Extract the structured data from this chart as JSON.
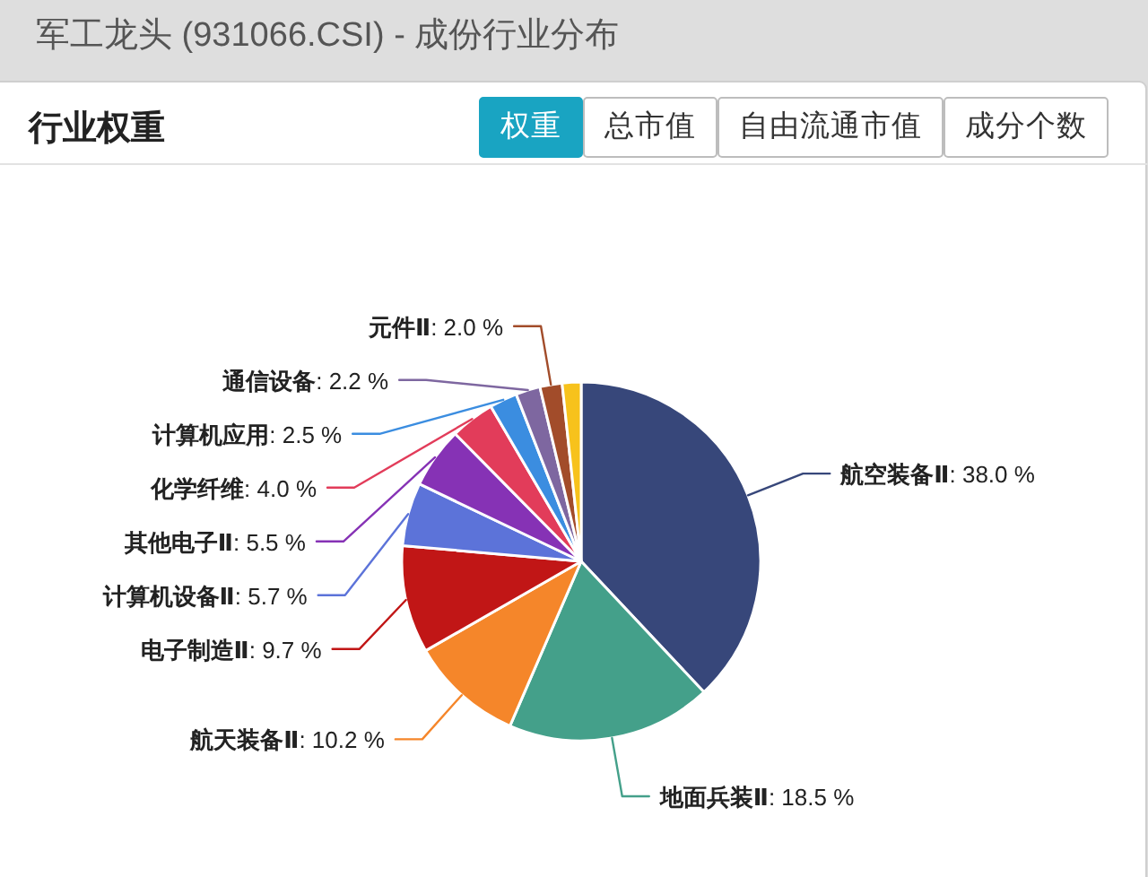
{
  "chart_data": {
    "type": "pie",
    "title": "军工龙头 (931066.CSI) - 成份行业分布",
    "subtitle": "行业权重",
    "categories": [
      "航空装备Ⅱ",
      "地面兵装Ⅱ",
      "航天装备Ⅱ",
      "电子制造Ⅱ",
      "计算机设备Ⅱ",
      "其他电子Ⅱ",
      "化学纤维",
      "计算机应用",
      "通信设备",
      "元件Ⅱ",
      null
    ],
    "values": [
      38.0,
      18.5,
      10.2,
      9.7,
      5.7,
      5.5,
      4.0,
      2.5,
      2.2,
      2.0,
      1.7
    ],
    "value_labels": [
      ": 38.0 %",
      ": 18.5 %",
      ": 10.2 %",
      ": 9.7 %",
      ": 5.7 %",
      ": 5.5 %",
      ": 4.0 %",
      ": 2.5 %",
      ": 2.2 %",
      ": 2.0 %",
      null
    ],
    "colors": [
      "#37477a",
      "#44a08a",
      "#f5862a",
      "#c11616",
      "#5c73d9",
      "#8632b5",
      "#e23c5a",
      "#3b8de0",
      "#7e67a0",
      "#a24c2a",
      "#f7c21c"
    ],
    "annotations": [
      "权重",
      "总市值",
      "自由流通市值",
      "成分个数"
    ]
  }
}
